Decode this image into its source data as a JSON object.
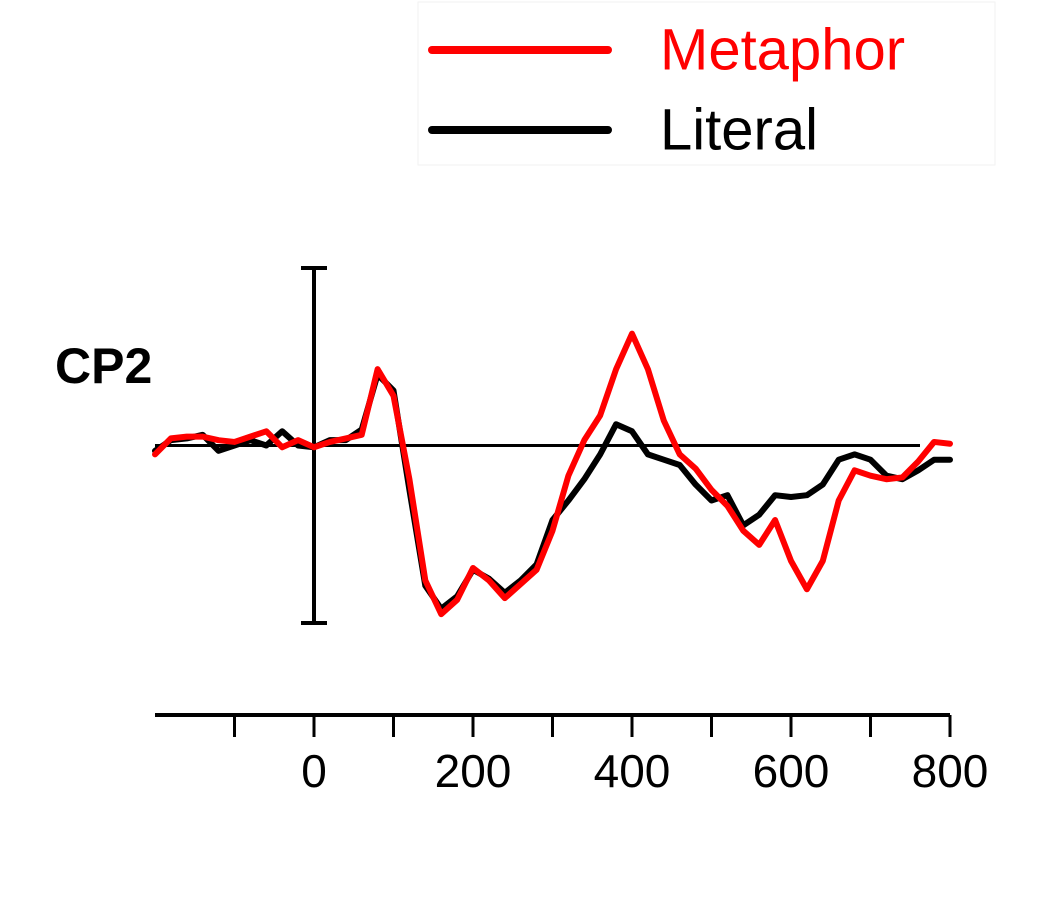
{
  "chart_data": {
    "type": "line",
    "title": "CP2",
    "x": [
      -200,
      -180,
      -160,
      -140,
      -120,
      -100,
      -80,
      -60,
      -40,
      -20,
      0,
      20,
      40,
      60,
      80,
      100,
      120,
      140,
      160,
      180,
      200,
      220,
      240,
      260,
      280,
      300,
      320,
      340,
      360,
      380,
      400,
      420,
      440,
      460,
      480,
      500,
      520,
      540,
      560,
      580,
      600,
      620,
      640,
      660,
      680,
      700,
      720,
      740,
      760,
      780,
      800
    ],
    "series": [
      {
        "name": "Metaphor",
        "color": "#ff0000",
        "values": [
          -0.5,
          0.4,
          0.5,
          0.5,
          0.3,
          0.2,
          0.5,
          0.8,
          -0.1,
          0.3,
          -0.1,
          0.2,
          0.4,
          0.6,
          4.3,
          2.8,
          -1.9,
          -7.6,
          -9.5,
          -8.7,
          -6.9,
          -7.6,
          -8.6,
          -7.8,
          -7.0,
          -4.8,
          -1.7,
          0.3,
          1.7,
          4.3,
          6.3,
          4.3,
          1.4,
          -0.5,
          -1.3,
          -2.5,
          -3.4,
          -4.8,
          -5.6,
          -4.2,
          -6.5,
          -8.1,
          -6.5,
          -3.1,
          -1.4,
          -1.7,
          -1.9,
          -1.8,
          -0.9,
          0.2,
          0.1
        ]
      },
      {
        "name": "Literal",
        "color": "#000000",
        "values": [
          -0.3,
          0.3,
          0.4,
          0.6,
          -0.3,
          0,
          0.3,
          0,
          0.8,
          0,
          -0.1,
          0.3,
          0.3,
          0.9,
          4.0,
          3.1,
          -2.5,
          -7.9,
          -9.2,
          -8.5,
          -7.0,
          -7.5,
          -8.3,
          -7.6,
          -6.7,
          -4.2,
          -3.1,
          -1.9,
          -0.5,
          1.2,
          0.8,
          -0.5,
          -0.8,
          -1.1,
          -2.2,
          -3.1,
          -2.8,
          -4.5,
          -3.9,
          -2.8,
          -2.9,
          -2.8,
          -2.2,
          -0.8,
          -0.5,
          -0.8,
          -1.7,
          -1.9,
          -1.4,
          -0.8,
          -0.8
        ]
      }
    ],
    "xlim": [
      -200,
      800
    ],
    "xticks": [
      0,
      200,
      400,
      600,
      800
    ],
    "xminor_ticks": [
      -100,
      100,
      300,
      500,
      700
    ],
    "ylim": [
      -10,
      10
    ],
    "grid": false,
    "legend": "upper right"
  }
}
